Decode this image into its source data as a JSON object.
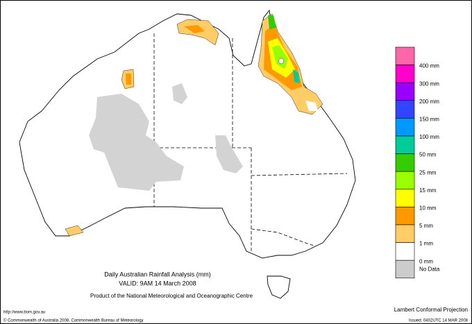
{
  "header": {
    "title": "Daily Australian Rainfall Analysis (mm)",
    "valid": "VALID: 9AM 14 March 2008",
    "product": "Product of the National Meteorological and Oceanographic Centre"
  },
  "legend": {
    "colors": [
      "#ff66aa",
      "#ff00cc",
      "#9900ff",
      "#3344ff",
      "#0099ff",
      "#00cc99",
      "#33cc00",
      "#99ff00",
      "#ffff00",
      "#ff9900",
      "#ffcc66",
      "#ffffff",
      "#cccccc"
    ],
    "labels": [
      "400 mm",
      "300 mm",
      "200 mm",
      "150 mm",
      "100 mm",
      "50 mm",
      "25 mm",
      "15 mm",
      "10 mm",
      "5 mm",
      "1 mm",
      "0 mm",
      "No Data"
    ]
  },
  "footer": {
    "url": "http://www.bom.gov.au",
    "copyright": "© Commonwealth of Australia 2008, Commonwealth Bureau of Meteorology",
    "projection": "Lambert Conformal Projection",
    "issued": "Issued: 0402UTC 14 MAR 2008"
  }
}
